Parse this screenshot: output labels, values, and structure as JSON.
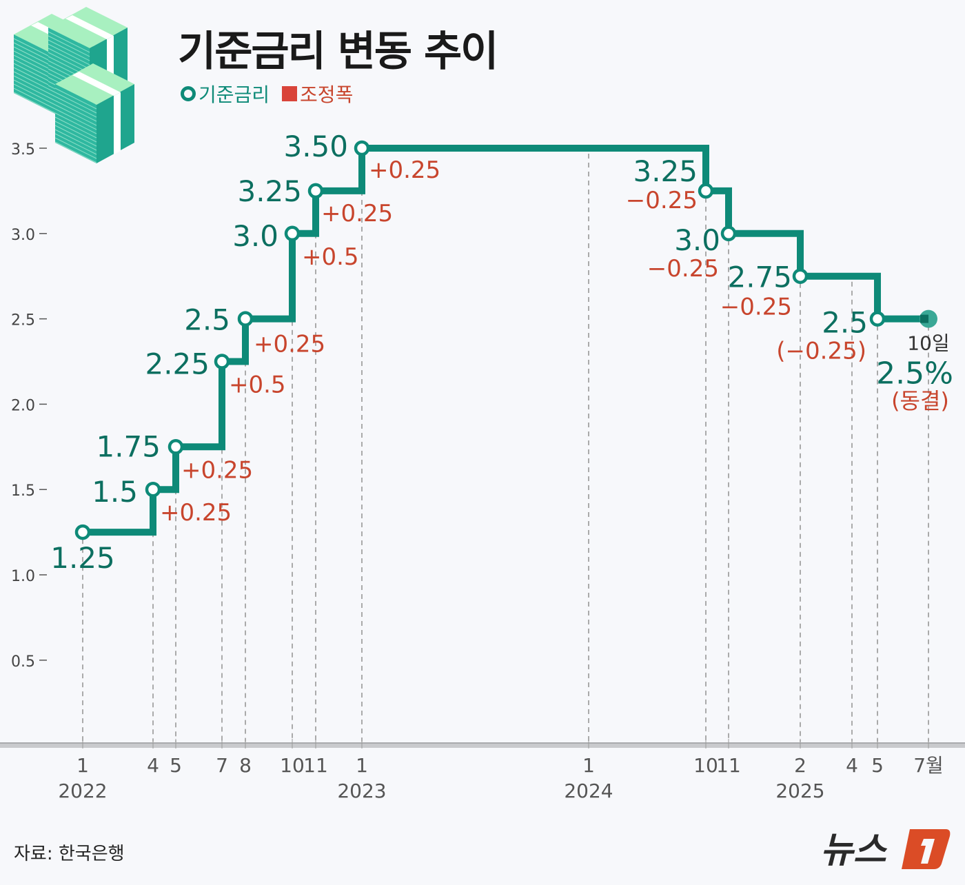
{
  "title": "기준금리 변동 추이",
  "legend": {
    "rate": "기준금리",
    "change": "조정폭"
  },
  "source": "자료: 한국은행",
  "logo_text": "뉴스1",
  "colors": {
    "rate": "#0e8a78",
    "change": "#c8452d",
    "axis": "#9a9a9a"
  },
  "icon": "money-stack-icon",
  "chart_data": {
    "type": "line",
    "step": true,
    "ylim": [
      0,
      3.5
    ],
    "yticks": [
      "0.5",
      "1.0",
      "1.5",
      "2.0",
      "2.5",
      "3.0",
      "3.5"
    ],
    "xticks": [
      {
        "date": "2022-01",
        "month": "1",
        "year": "2022"
      },
      {
        "date": "2022-04",
        "month": "4"
      },
      {
        "date": "2022-05",
        "month": "5"
      },
      {
        "date": "2022-07",
        "month": "7"
      },
      {
        "date": "2022-08",
        "month": "8"
      },
      {
        "date": "2022-10",
        "month": "10"
      },
      {
        "date": "2022-11",
        "month": "11"
      },
      {
        "date": "2023-01",
        "month": "1",
        "year": "2023"
      },
      {
        "date": "2024-01",
        "month": "1",
        "year": "2024"
      },
      {
        "date": "2024-10",
        "month": "10"
      },
      {
        "date": "2024-11",
        "month": "11"
      },
      {
        "date": "2025-02",
        "month": "2",
        "year": "2025"
      },
      {
        "date": "2025-04",
        "month": "4"
      },
      {
        "date": "2025-05",
        "month": "5"
      },
      {
        "date": "2025-07",
        "month": "7월"
      }
    ],
    "points": [
      {
        "date": "2022-01",
        "value": 1.25,
        "label": "1.25",
        "change": ""
      },
      {
        "date": "2022-04",
        "value": 1.5,
        "label": "1.5",
        "change": "+0.25"
      },
      {
        "date": "2022-05",
        "value": 1.75,
        "label": "1.75",
        "change": "+0.25"
      },
      {
        "date": "2022-07",
        "value": 2.25,
        "label": "2.25",
        "change": "+0.5"
      },
      {
        "date": "2022-08",
        "value": 2.5,
        "label": "2.5",
        "change": "+0.25"
      },
      {
        "date": "2022-10",
        "value": 3.0,
        "label": "3.0",
        "change": "+0.5"
      },
      {
        "date": "2022-11",
        "value": 3.25,
        "label": "3.25",
        "change": "+0.25"
      },
      {
        "date": "2023-01",
        "value": 3.5,
        "label": "3.50",
        "change": "+0.25"
      },
      {
        "date": "2024-10",
        "value": 3.25,
        "label": "3.25",
        "change": "−0.25"
      },
      {
        "date": "2024-11",
        "value": 3.0,
        "label": "3.0",
        "change": "−0.25"
      },
      {
        "date": "2025-02",
        "value": 2.75,
        "label": "2.75",
        "change": "−0.25"
      },
      {
        "date": "2025-05",
        "value": 2.5,
        "label": "2.5",
        "change": "(−0.25)"
      }
    ],
    "final": {
      "date": "2025-07",
      "value": 2.5,
      "day_label": "10일",
      "label": "2.5%",
      "change": "(동결)"
    }
  }
}
